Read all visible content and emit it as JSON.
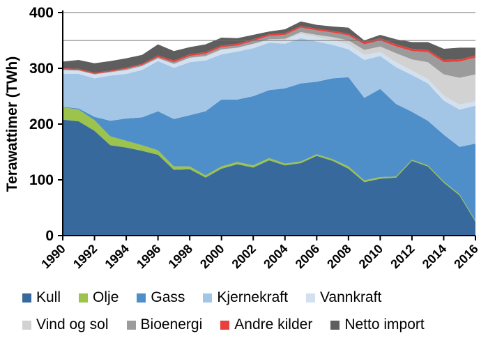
{
  "figure": {
    "background": "#ffffff"
  },
  "y_axis": {
    "label": "Terawattimer (TWh)",
    "ticks": [
      0,
      100,
      200,
      300,
      400
    ],
    "max": 400
  },
  "x_axis": {
    "tick_years": [
      1990,
      1992,
      1994,
      1996,
      1998,
      2000,
      2002,
      2004,
      2006,
      2008,
      2010,
      2012,
      2014,
      2016
    ]
  },
  "gridlines_y": [
    350,
    400
  ],
  "chart_data": {
    "type": "area",
    "stacked": true,
    "title": "",
    "xlabel": "",
    "ylabel": "Terawattimer (TWh)",
    "ylim": [
      0,
      400
    ],
    "grid": "horizontal lines at 350 and 400 only",
    "legend_position": "bottom",
    "x": [
      1990,
      1991,
      1992,
      1993,
      1994,
      1995,
      1996,
      1997,
      1998,
      1999,
      2000,
      2001,
      2002,
      2003,
      2004,
      2005,
      2006,
      2007,
      2008,
      2009,
      2010,
      2011,
      2012,
      2013,
      2014,
      2015,
      2016
    ],
    "series": [
      {
        "id": "kull",
        "name": "Kull",
        "color": "#38699c",
        "values": [
          208,
          205,
          188,
          162,
          158,
          152,
          145,
          118,
          119,
          104,
          120,
          128,
          122,
          135,
          126,
          130,
          143,
          134,
          120,
          96,
          102,
          104,
          134,
          124,
          95,
          72,
          25
        ]
      },
      {
        "id": "olje",
        "name": "Olje",
        "color": "#9cc34b",
        "values": [
          22,
          21,
          19,
          16,
          12,
          10,
          8,
          6,
          5,
          4,
          4,
          4,
          4,
          4,
          3,
          3,
          3,
          3,
          4,
          3,
          3,
          2,
          2,
          2,
          2,
          2,
          2
        ]
      },
      {
        "id": "gass",
        "name": "Gass",
        "color": "#4e8ec9",
        "values": [
          1,
          2,
          6,
          28,
          40,
          50,
          70,
          85,
          92,
          115,
          120,
          112,
          124,
          122,
          135,
          140,
          130,
          145,
          160,
          148,
          158,
          130,
          86,
          80,
          84,
          85,
          138
        ]
      },
      {
        "id": "kjernekraft",
        "name": "Kjernekraft",
        "color": "#a3c6e6",
        "values": [
          59,
          62,
          69,
          81,
          80,
          85,
          90,
          92,
          95,
          91,
          81,
          86,
          86,
          85,
          80,
          81,
          72,
          60,
          50,
          68,
          59,
          66,
          66,
          67,
          61,
          67,
          68
        ]
      },
      {
        "id": "vannkraft",
        "name": "Vannkraft",
        "color": "#d2e0f0",
        "values": [
          7,
          6,
          7,
          6,
          7,
          7,
          5,
          6,
          7,
          7,
          8,
          6,
          7,
          5,
          7,
          8,
          8,
          9,
          9,
          9,
          7,
          9,
          8,
          8,
          9,
          9,
          8
        ]
      },
      {
        "id": "vind-og-sol",
        "name": "Vind og sol",
        "color": "#d2d2d2",
        "values": [
          0,
          0,
          0,
          0,
          0,
          0,
          0,
          1,
          1,
          1,
          1,
          1,
          1,
          1,
          2,
          3,
          4,
          5,
          7,
          9,
          10,
          16,
          20,
          30,
          38,
          48,
          48
        ]
      },
      {
        "id": "bioenergi",
        "name": "Bioenergi",
        "color": "#9b9b9b",
        "values": [
          1,
          1,
          1,
          1,
          2,
          2,
          2,
          3,
          3,
          4,
          4,
          4,
          5,
          6,
          7,
          8,
          8,
          8,
          9,
          10,
          11,
          12,
          15,
          18,
          22,
          29,
          30
        ]
      },
      {
        "id": "andre-kilder",
        "name": "Andre kilder",
        "color": "#e8403c",
        "values": [
          2,
          2,
          2,
          2,
          2,
          2,
          3,
          3,
          3,
          3,
          3,
          3,
          3,
          3,
          3,
          3,
          3,
          3,
          3,
          4,
          4,
          4,
          4,
          4,
          4,
          4,
          4
        ]
      },
      {
        "id": "netto-import",
        "name": "Netto import",
        "color": "#5e5e5e",
        "values": [
          12,
          16,
          17,
          17,
          17,
          16,
          20,
          17,
          13,
          14,
          14,
          10,
          8,
          5,
          7,
          8,
          7,
          8,
          11,
          3,
          6,
          9,
          12,
          14,
          20,
          21,
          14
        ]
      }
    ],
    "legend_rows": [
      [
        "kull",
        "olje",
        "gass",
        "kjernekraft",
        "vannkraft"
      ],
      [
        "vind-og-sol",
        "bioenergi",
        "andre-kilder",
        "netto-import"
      ]
    ]
  }
}
